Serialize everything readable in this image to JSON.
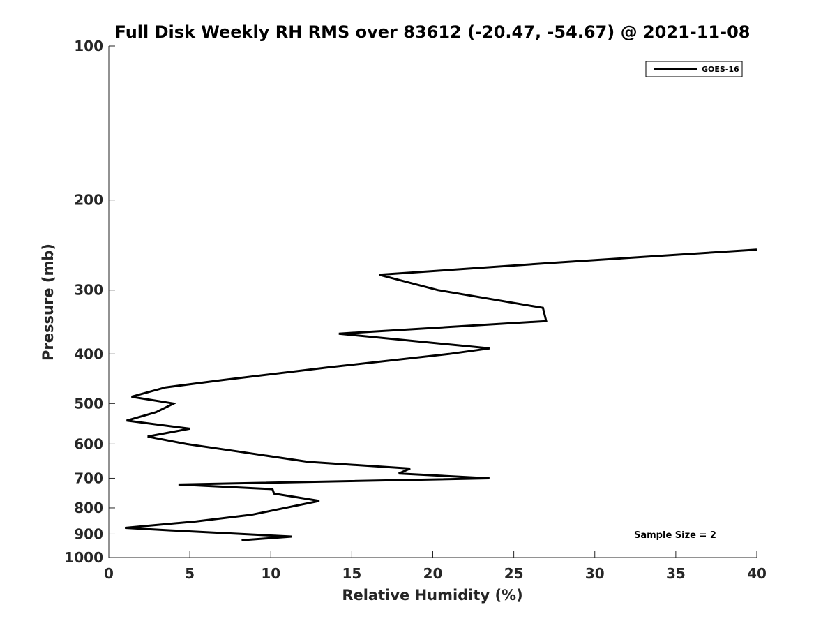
{
  "chart_data": {
    "type": "line",
    "title": "Full Disk Weekly RH RMS over 83612 (-20.47, -54.67) @ 2021-11-08",
    "xlabel": "Relative Humidity (%)",
    "ylabel": "Pressure (mb)",
    "xlim": [
      0,
      40
    ],
    "ylim": [
      100,
      1000
    ],
    "y_scale": "log",
    "y_reversed": true,
    "grid": false,
    "x_ticks": [
      0,
      5,
      10,
      15,
      20,
      25,
      30,
      35,
      40
    ],
    "y_ticks": [
      100,
      200,
      300,
      400,
      500,
      600,
      700,
      800,
      900,
      1000
    ],
    "legend_position": "top-right",
    "annotation": "Sample Size = 2",
    "series": [
      {
        "name": "GOES-16",
        "color": "#000000",
        "points": [
          {
            "rh": 40.0,
            "p": 250
          },
          {
            "rh": 27.7,
            "p": 265
          },
          {
            "rh": 16.7,
            "p": 280
          },
          {
            "rh": 20.3,
            "p": 300
          },
          {
            "rh": 26.8,
            "p": 325
          },
          {
            "rh": 27.0,
            "p": 345
          },
          {
            "rh": 14.2,
            "p": 365
          },
          {
            "rh": 23.5,
            "p": 390
          },
          {
            "rh": 21.0,
            "p": 400
          },
          {
            "rh": 13.5,
            "p": 425
          },
          {
            "rh": 7.0,
            "p": 450
          },
          {
            "rh": 3.5,
            "p": 465
          },
          {
            "rh": 1.4,
            "p": 485
          },
          {
            "rh": 4.0,
            "p": 500
          },
          {
            "rh": 2.9,
            "p": 520
          },
          {
            "rh": 1.1,
            "p": 540
          },
          {
            "rh": 5.0,
            "p": 560
          },
          {
            "rh": 2.4,
            "p": 580
          },
          {
            "rh": 4.8,
            "p": 600
          },
          {
            "rh": 7.9,
            "p": 620
          },
          {
            "rh": 12.3,
            "p": 650
          },
          {
            "rh": 18.6,
            "p": 670
          },
          {
            "rh": 17.9,
            "p": 685
          },
          {
            "rh": 23.5,
            "p": 700
          },
          {
            "rh": 4.3,
            "p": 720
          },
          {
            "rh": 10.1,
            "p": 735
          },
          {
            "rh": 10.2,
            "p": 750
          },
          {
            "rh": 13.0,
            "p": 775
          },
          {
            "rh": 8.8,
            "p": 825
          },
          {
            "rh": 5.4,
            "p": 850
          },
          {
            "rh": 1.0,
            "p": 875
          },
          {
            "rh": 3.8,
            "p": 885
          },
          {
            "rh": 11.3,
            "p": 910
          },
          {
            "rh": 8.2,
            "p": 925
          }
        ]
      }
    ]
  }
}
